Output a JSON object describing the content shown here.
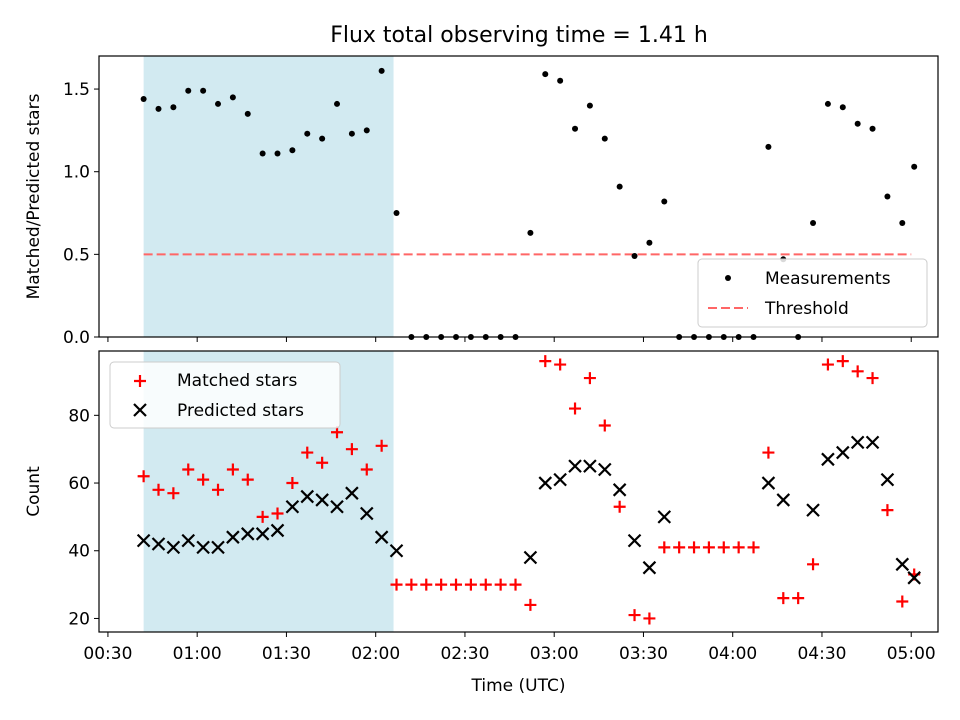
{
  "title": "Flux total observing time = 1.41 h",
  "colors": {
    "shade": "#add8e6",
    "measurement": "#000000",
    "threshold": "#ff6666",
    "matched": "#ff0000",
    "predicted": "#000000"
  },
  "chart_data": [
    {
      "type": "scatter",
      "ylabel": "Matched/Predicted stars",
      "xlim": [
        "00:27",
        "05:09"
      ],
      "ylim": [
        0,
        1.7
      ],
      "y_ticks": [
        "0.0",
        "0.5",
        "1.0",
        "1.5"
      ],
      "y_tick_values": [
        0,
        0.5,
        1.0,
        1.5
      ],
      "shaded_interval": [
        "00:42",
        "02:06"
      ],
      "threshold": 0.5,
      "threshold_range": [
        "00:42",
        "05:00"
      ],
      "legend_position": "lower right",
      "legend": [
        "Measurements",
        "Threshold"
      ],
      "series": [
        {
          "name": "Measurements",
          "points": [
            [
              "00:42",
              1.44
            ],
            [
              "00:47",
              1.38
            ],
            [
              "00:52",
              1.39
            ],
            [
              "00:57",
              1.49
            ],
            [
              "01:02",
              1.49
            ],
            [
              "01:07",
              1.41
            ],
            [
              "01:12",
              1.45
            ],
            [
              "01:17",
              1.35
            ],
            [
              "01:22",
              1.11
            ],
            [
              "01:27",
              1.11
            ],
            [
              "01:32",
              1.13
            ],
            [
              "01:37",
              1.23
            ],
            [
              "01:42",
              1.2
            ],
            [
              "01:47",
              1.41
            ],
            [
              "01:52",
              1.23
            ],
            [
              "01:57",
              1.25
            ],
            [
              "02:02",
              1.61
            ],
            [
              "02:07",
              0.75
            ],
            [
              "02:12",
              0.0
            ],
            [
              "02:17",
              0.0
            ],
            [
              "02:22",
              0.0
            ],
            [
              "02:27",
              0.0
            ],
            [
              "02:32",
              0.0
            ],
            [
              "02:37",
              0.0
            ],
            [
              "02:42",
              0.0
            ],
            [
              "02:47",
              0.0
            ],
            [
              "02:52",
              0.63
            ],
            [
              "02:57",
              1.59
            ],
            [
              "03:02",
              1.55
            ],
            [
              "03:07",
              1.26
            ],
            [
              "03:12",
              1.4
            ],
            [
              "03:17",
              1.2
            ],
            [
              "03:22",
              0.91
            ],
            [
              "03:27",
              0.49
            ],
            [
              "03:32",
              0.57
            ],
            [
              "03:37",
              0.82
            ],
            [
              "03:42",
              0.0
            ],
            [
              "03:47",
              0.0
            ],
            [
              "03:52",
              0.0
            ],
            [
              "03:57",
              0.0
            ],
            [
              "04:02",
              0.0
            ],
            [
              "04:07",
              0.0
            ],
            [
              "04:12",
              1.15
            ],
            [
              "04:17",
              0.47
            ],
            [
              "04:22",
              0.0
            ],
            [
              "04:27",
              0.69
            ],
            [
              "04:32",
              1.41
            ],
            [
              "04:37",
              1.39
            ],
            [
              "04:42",
              1.29
            ],
            [
              "04:47",
              1.26
            ],
            [
              "04:52",
              0.85
            ],
            [
              "04:57",
              0.69
            ],
            [
              "05:01",
              1.03
            ]
          ]
        }
      ]
    },
    {
      "type": "scatter",
      "ylabel": "Count",
      "xlabel": "Time (UTC)",
      "xlim": [
        "00:27",
        "05:09"
      ],
      "ylim": [
        16,
        99
      ],
      "x_ticks": [
        "00:30",
        "01:00",
        "01:30",
        "02:00",
        "02:30",
        "03:00",
        "03:30",
        "04:00",
        "04:30",
        "05:00"
      ],
      "y_ticks": [
        "20",
        "40",
        "60",
        "80"
      ],
      "y_tick_values": [
        20,
        40,
        60,
        80
      ],
      "shaded_interval": [
        "00:42",
        "02:06"
      ],
      "legend_position": "upper left",
      "legend": [
        "Matched stars",
        "Predicted stars"
      ],
      "series": [
        {
          "name": "Matched stars",
          "points": [
            [
              "00:42",
              62
            ],
            [
              "00:47",
              58
            ],
            [
              "00:52",
              57
            ],
            [
              "00:57",
              64
            ],
            [
              "01:02",
              61
            ],
            [
              "01:07",
              58
            ],
            [
              "01:12",
              64
            ],
            [
              "01:17",
              61
            ],
            [
              "01:22",
              50
            ],
            [
              "01:27",
              51
            ],
            [
              "01:32",
              60
            ],
            [
              "01:37",
              69
            ],
            [
              "01:42",
              66
            ],
            [
              "01:47",
              75
            ],
            [
              "01:52",
              70
            ],
            [
              "01:57",
              64
            ],
            [
              "02:02",
              71
            ],
            [
              "02:07",
              30
            ],
            [
              "02:12",
              30
            ],
            [
              "02:17",
              30
            ],
            [
              "02:22",
              30
            ],
            [
              "02:27",
              30
            ],
            [
              "02:32",
              30
            ],
            [
              "02:37",
              30
            ],
            [
              "02:42",
              30
            ],
            [
              "02:47",
              30
            ],
            [
              "02:52",
              24
            ],
            [
              "02:57",
              96
            ],
            [
              "03:02",
              95
            ],
            [
              "03:07",
              82
            ],
            [
              "03:12",
              91
            ],
            [
              "03:17",
              77
            ],
            [
              "03:22",
              53
            ],
            [
              "03:27",
              21
            ],
            [
              "03:32",
              20
            ],
            [
              "03:37",
              41
            ],
            [
              "03:42",
              41
            ],
            [
              "03:47",
              41
            ],
            [
              "03:52",
              41
            ],
            [
              "03:57",
              41
            ],
            [
              "04:02",
              41
            ],
            [
              "04:07",
              41
            ],
            [
              "04:12",
              69
            ],
            [
              "04:17",
              26
            ],
            [
              "04:22",
              26
            ],
            [
              "04:27",
              36
            ],
            [
              "04:32",
              95
            ],
            [
              "04:37",
              96
            ],
            [
              "04:42",
              93
            ],
            [
              "04:47",
              91
            ],
            [
              "04:52",
              52
            ],
            [
              "04:57",
              25
            ],
            [
              "05:01",
              33
            ]
          ]
        },
        {
          "name": "Predicted stars",
          "points": [
            [
              "00:42",
              43
            ],
            [
              "00:47",
              42
            ],
            [
              "00:52",
              41
            ],
            [
              "00:57",
              43
            ],
            [
              "01:02",
              41
            ],
            [
              "01:07",
              41
            ],
            [
              "01:12",
              44
            ],
            [
              "01:17",
              45
            ],
            [
              "01:22",
              45
            ],
            [
              "01:27",
              46
            ],
            [
              "01:32",
              53
            ],
            [
              "01:37",
              56
            ],
            [
              "01:42",
              55
            ],
            [
              "01:47",
              53
            ],
            [
              "01:52",
              57
            ],
            [
              "01:57",
              51
            ],
            [
              "02:02",
              44
            ],
            [
              "02:07",
              40
            ],
            [
              "02:52",
              38
            ],
            [
              "02:57",
              60
            ],
            [
              "03:02",
              61
            ],
            [
              "03:07",
              65
            ],
            [
              "03:12",
              65
            ],
            [
              "03:17",
              64
            ],
            [
              "03:22",
              58
            ],
            [
              "03:27",
              43
            ],
            [
              "03:32",
              35
            ],
            [
              "03:37",
              50
            ],
            [
              "04:12",
              60
            ],
            [
              "04:17",
              55
            ],
            [
              "04:27",
              52
            ],
            [
              "04:32",
              67
            ],
            [
              "04:37",
              69
            ],
            [
              "04:42",
              72
            ],
            [
              "04:47",
              72
            ],
            [
              "04:52",
              61
            ],
            [
              "04:57",
              36
            ],
            [
              "05:01",
              32
            ]
          ]
        }
      ]
    }
  ]
}
